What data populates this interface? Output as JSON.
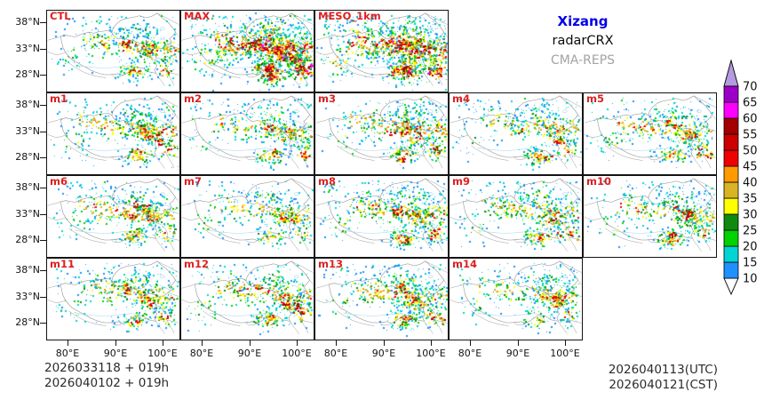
{
  "header": {
    "region": "Xizang",
    "region_color": "#0000e8",
    "obs": "radarCRX",
    "model": "CMA-REPS",
    "model_color": "#a3a3a3"
  },
  "panels": [
    {
      "label": "CTL",
      "row": 0,
      "col": 0,
      "density": 1.0,
      "intensity": 1.0,
      "blobs": 4,
      "seed": 101
    },
    {
      "label": "MAX",
      "row": 0,
      "col": 1,
      "density": 2.3,
      "intensity": 1.3,
      "blobs": 30,
      "seed": 102
    },
    {
      "label": "MESO_1km",
      "row": 0,
      "col": 2,
      "density": 2.0,
      "intensity": 1.22,
      "blobs": 22,
      "seed": 103
    },
    {
      "label": "m1",
      "row": 1,
      "col": 0,
      "density": 1.05,
      "intensity": 1.0,
      "blobs": 5,
      "seed": 104
    },
    {
      "label": "m2",
      "row": 1,
      "col": 1,
      "density": 0.9,
      "intensity": 0.95,
      "blobs": 3,
      "seed": 105
    },
    {
      "label": "m3",
      "row": 1,
      "col": 2,
      "density": 1.1,
      "intensity": 1.05,
      "blobs": 6,
      "seed": 106
    },
    {
      "label": "m4",
      "row": 1,
      "col": 3,
      "density": 0.95,
      "intensity": 0.95,
      "blobs": 4,
      "seed": 107
    },
    {
      "label": "m5",
      "row": 1,
      "col": 4,
      "density": 1.0,
      "intensity": 1.0,
      "blobs": 5,
      "seed": 108
    },
    {
      "label": "m6",
      "row": 2,
      "col": 0,
      "density": 1.0,
      "intensity": 1.0,
      "blobs": 4,
      "seed": 109
    },
    {
      "label": "m7",
      "row": 2,
      "col": 1,
      "density": 0.8,
      "intensity": 0.9,
      "blobs": 2,
      "seed": 110
    },
    {
      "label": "m8",
      "row": 2,
      "col": 2,
      "density": 1.15,
      "intensity": 1.05,
      "blobs": 6,
      "seed": 111
    },
    {
      "label": "m9",
      "row": 2,
      "col": 3,
      "density": 1.0,
      "intensity": 1.0,
      "blobs": 4,
      "seed": 112
    },
    {
      "label": "m10",
      "row": 2,
      "col": 4,
      "density": 1.05,
      "intensity": 1.0,
      "blobs": 5,
      "seed": 113
    },
    {
      "label": "m11",
      "row": 3,
      "col": 0,
      "density": 1.0,
      "intensity": 1.0,
      "blobs": 4,
      "seed": 114
    },
    {
      "label": "m12",
      "row": 3,
      "col": 1,
      "density": 1.05,
      "intensity": 1.05,
      "blobs": 5,
      "seed": 115
    },
    {
      "label": "m13",
      "row": 3,
      "col": 2,
      "density": 1.15,
      "intensity": 1.05,
      "blobs": 6,
      "seed": 116
    },
    {
      "label": "m14",
      "row": 3,
      "col": 3,
      "density": 0.95,
      "intensity": 0.95,
      "blobs": 3,
      "seed": 117
    }
  ],
  "panel_label_color": "#e02020",
  "axes": {
    "lat_ticks": [
      "38°N",
      "33°N",
      "28°N"
    ],
    "lon_ticks": [
      "80°E",
      "90°E",
      "100°E"
    ]
  },
  "colorbar": {
    "levels": [
      10,
      15,
      20,
      25,
      30,
      35,
      40,
      45,
      50,
      55,
      60,
      65,
      70
    ],
    "colors": [
      "#1e90ff",
      "#00d4d4",
      "#00d300",
      "#0f8a0f",
      "#ffff00",
      "#d8b425",
      "#ff9a00",
      "#f00000",
      "#cd0000",
      "#a40000",
      "#ff00ff",
      "#9c00c8"
    ],
    "over_color": "#b49ade",
    "under_color": "#ffffff"
  },
  "footer": {
    "left_line1": "2026033118 + 019h",
    "left_line2": "2026040102 + 019h",
    "right_line1": "2026040113(UTC)",
    "right_line2": "2026040121(CST)"
  }
}
